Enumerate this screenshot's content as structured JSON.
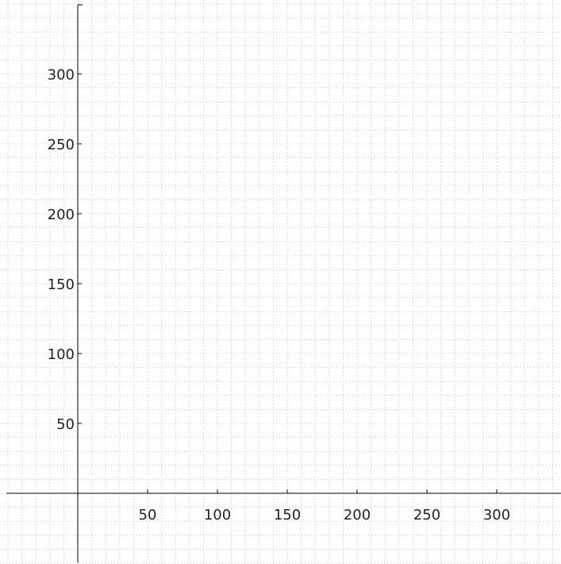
{
  "chart_data": {
    "type": "scatter",
    "title": "",
    "xlabel": "",
    "ylabel": "",
    "xlim": [
      -52,
      345
    ],
    "ylim": [
      -50,
      350
    ],
    "x_ticks": [
      50,
      100,
      150,
      200,
      250,
      300
    ],
    "y_ticks": [
      50,
      100,
      150,
      200,
      250,
      300
    ],
    "x_tick_labels": [
      "50",
      "100",
      "150",
      "200",
      "250",
      "300"
    ],
    "y_tick_labels": [
      "50",
      "100",
      "150",
      "200",
      "250",
      "300"
    ],
    "grid": true,
    "grid_minor_step": 10,
    "series": [],
    "colors": {
      "axis": "#000000",
      "grid": "#b4b4b4",
      "text": "#222222"
    }
  }
}
